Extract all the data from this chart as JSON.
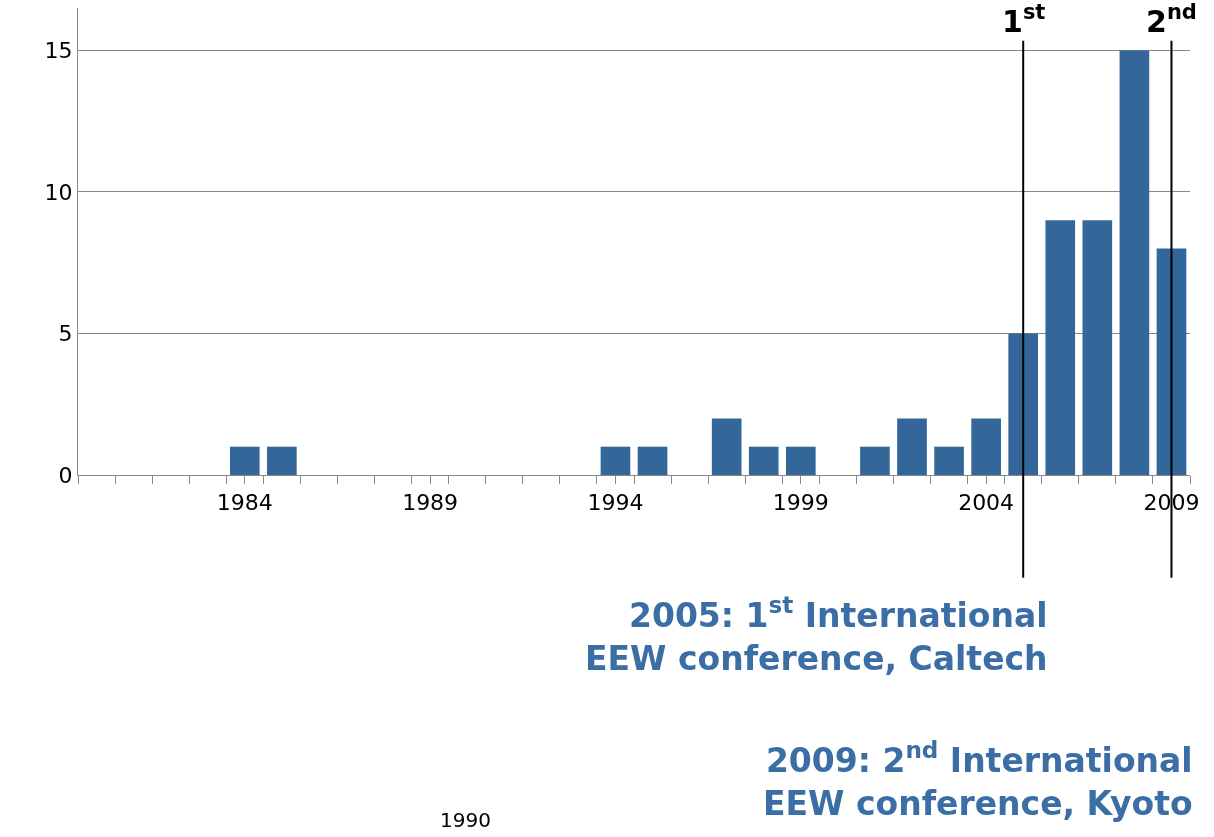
{
  "chart_data": {
    "type": "bar",
    "x": [
      1984,
      1985,
      1994,
      1995,
      1997,
      1998,
      1999,
      2001,
      2002,
      2003,
      2004,
      2005,
      2006,
      2007,
      2008,
      2009
    ],
    "values": [
      1,
      1,
      1,
      1,
      2,
      1,
      1,
      1,
      2,
      1,
      2,
      5,
      9,
      9,
      15,
      8
    ],
    "color": "#336699",
    "xlim": [
      1979.5,
      2009.5
    ],
    "xticks": [
      1984,
      1989,
      1994,
      1999,
      2004,
      2009
    ],
    "ylim": [
      0,
      16.5
    ],
    "yticks": [
      0,
      5,
      10,
      15
    ],
    "grid": "y",
    "legend": false,
    "ref_lines": [
      {
        "axis": "x",
        "value": 2005,
        "label": "1$^{st}$",
        "color": "#000000"
      },
      {
        "axis": "x",
        "value": 2009,
        "label": "2$^{nd}$",
        "color": "#000000"
      }
    ],
    "annotations": [
      "2005: 1$^{st}$ International EEW conference, Caltech",
      "2009: 2$^{nd}$ International EEW conference, Kyoto",
      "1990"
    ]
  }
}
